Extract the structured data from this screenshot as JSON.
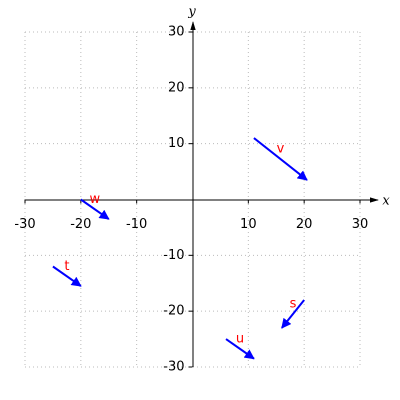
{
  "chart_data": {
    "type": "vector",
    "xlabel": "x",
    "ylabel": "y",
    "xlim": [
      -30,
      30
    ],
    "ylim": [
      -30,
      30
    ],
    "xticks": [
      -30,
      -20,
      -10,
      10,
      20,
      30
    ],
    "yticks": [
      -30,
      -20,
      -10,
      10,
      20,
      30
    ],
    "grid": true,
    "color": "#0000ff",
    "label_color": "#ff0000",
    "vectors": [
      {
        "name": "v",
        "from": [
          11,
          11
        ],
        "to": [
          20.5,
          3.5
        ]
      },
      {
        "name": "w",
        "from": [
          -20,
          0
        ],
        "to": [
          -15,
          -3.5
        ]
      },
      {
        "name": "t",
        "from": [
          -25,
          -12
        ],
        "to": [
          -20,
          -15.5
        ]
      },
      {
        "name": "u",
        "from": [
          6,
          -25
        ],
        "to": [
          11,
          -28.5
        ]
      },
      {
        "name": "s",
        "from": [
          20,
          -18
        ],
        "to": [
          16,
          -23
        ]
      }
    ]
  }
}
